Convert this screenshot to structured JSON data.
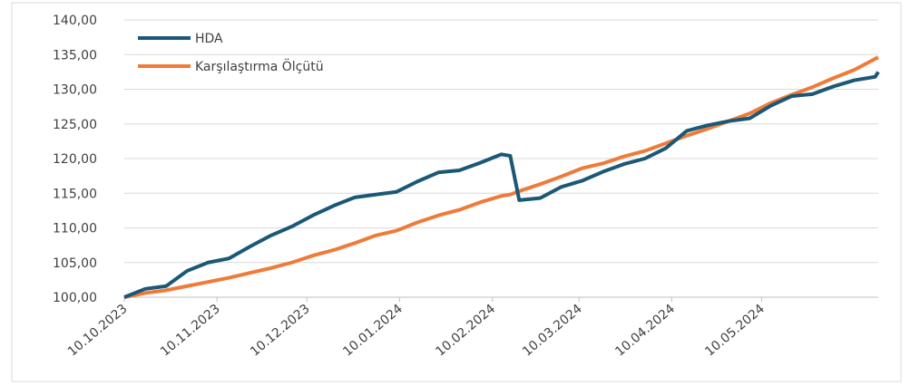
{
  "chart_data": {
    "type": "line",
    "x": [
      "10.10.2023",
      "17.10.2023",
      "24.10.2023",
      "31.10.2023",
      "07.11.2023",
      "14.11.2023",
      "21.11.2023",
      "28.11.2023",
      "05.12.2023",
      "12.12.2023",
      "19.12.2023",
      "26.12.2023",
      "02.01.2024",
      "09.01.2024",
      "16.01.2024",
      "23.01.2024",
      "30.01.2024",
      "06.02.2024",
      "13.02.2024",
      "16.02.2024",
      "19.02.2024",
      "26.02.2024",
      "04.03.2024",
      "11.03.2024",
      "18.03.2024",
      "25.03.2024",
      "01.04.2024",
      "08.04.2024",
      "15.04.2024",
      "22.04.2024",
      "29.04.2024",
      "06.05.2024",
      "13.05.2024",
      "20.05.2024",
      "27.05.2024",
      "03.06.2024",
      "10.06.2024",
      "17.06.2024",
      "18.06.2024"
    ],
    "series": [
      {
        "name": "HDA",
        "color": "#1b5876",
        "values": [
          100,
          101.2,
          101.6,
          103.8,
          105.0,
          105.6,
          107.3,
          108.9,
          110.2,
          111.8,
          113.2,
          114.4,
          114.8,
          115.2,
          116.7,
          118.0,
          118.3,
          119.4,
          120.6,
          120.4,
          114.0,
          114.3,
          115.9,
          116.8,
          118.1,
          119.2,
          120.0,
          121.5,
          124.0,
          124.8,
          125.4,
          125.8,
          127.6,
          129.0,
          129.3,
          130.4,
          131.3,
          131.8,
          132.5
        ]
      },
      {
        "name": "Karşılaştırma Ölçütü",
        "color": "#ee7b3a",
        "values": [
          100,
          100.6,
          101.0,
          101.6,
          102.2,
          102.8,
          103.5,
          104.2,
          105.0,
          106.0,
          106.8,
          107.8,
          108.9,
          109.6,
          110.8,
          111.8,
          112.6,
          113.7,
          114.6,
          114.8,
          115.3,
          116.3,
          117.4,
          118.6,
          119.3,
          120.3,
          121.1,
          122.2,
          123.3,
          124.3,
          125.4,
          126.5,
          128.0,
          129.2,
          130.3,
          131.6,
          132.8,
          134.4,
          134.6
        ]
      }
    ],
    "xlim": [
      "10.10.2023",
      "18.06.2024"
    ],
    "xticks": [
      "10.10.2023",
      "10.11.2023",
      "10.12.2023",
      "10.01.2024",
      "10.02.2024",
      "10.03.2024",
      "10.04.2024",
      "10.05.2024"
    ],
    "ylim": [
      100,
      140
    ],
    "yticks": [
      {
        "value": 100,
        "label": "100,00"
      },
      {
        "value": 105,
        "label": "105,00"
      },
      {
        "value": 110,
        "label": "110,00"
      },
      {
        "value": 115,
        "label": "115,00"
      },
      {
        "value": 120,
        "label": "120,00"
      },
      {
        "value": 125,
        "label": "125,00"
      },
      {
        "value": 130,
        "label": "130,00"
      },
      {
        "value": 135,
        "label": "135,00"
      },
      {
        "value": 140,
        "label": "140,00"
      }
    ],
    "grid": true,
    "legend": "upper left"
  }
}
